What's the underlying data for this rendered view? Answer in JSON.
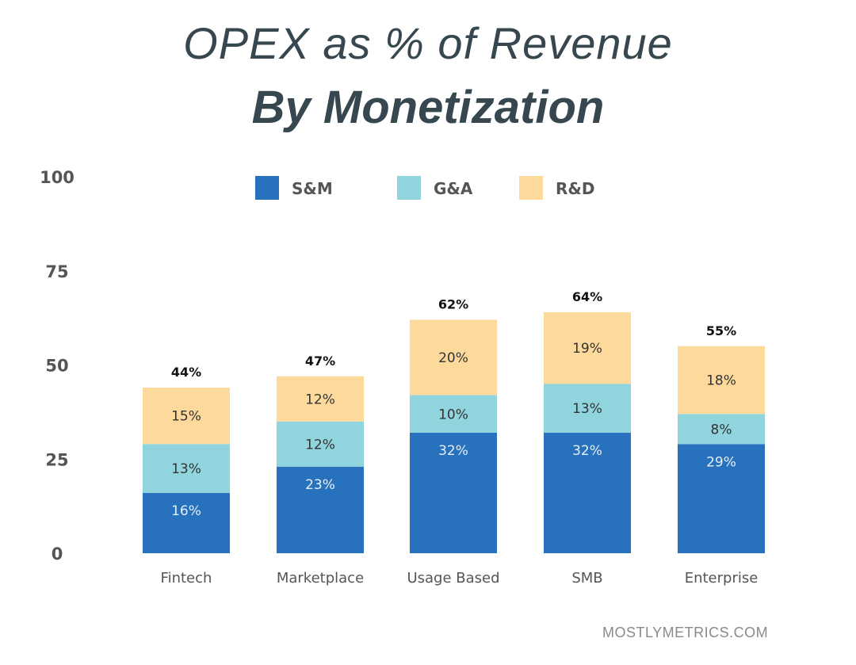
{
  "chart_data": {
    "type": "bar",
    "stacked": true,
    "title": "OPEX as % of Revenue",
    "subtitle": "By Monetization",
    "xlabel": "",
    "ylabel": "",
    "ylim": [
      0,
      100
    ],
    "yticks": [
      0,
      25,
      50,
      75,
      100
    ],
    "grid": false,
    "legend_position": "top",
    "categories": [
      "Fintech",
      "Marketplace",
      "Usage Based",
      "SMB",
      "Enterprise"
    ],
    "series": [
      {
        "name": "S&M",
        "color": "#2872bd",
        "values": [
          16,
          23,
          32,
          32,
          29
        ],
        "labels": [
          "16%",
          "23%",
          "32%",
          "32%",
          "29%"
        ],
        "label_color": "#e6eef8"
      },
      {
        "name": "G&A",
        "color": "#90d5de",
        "values": [
          13,
          12,
          10,
          13,
          8
        ],
        "labels": [
          "13%",
          "12%",
          "10%",
          "13%",
          "8%"
        ],
        "label_color": "#333333"
      },
      {
        "name": "R&D",
        "color": "#fdd99c",
        "values": [
          15,
          12,
          20,
          19,
          18
        ],
        "labels": [
          "15%",
          "12%",
          "20%",
          "19%",
          "18%"
        ],
        "label_color": "#333333"
      }
    ],
    "totals": [
      44,
      47,
      62,
      64,
      55
    ],
    "total_labels": [
      "44%",
      "47%",
      "62%",
      "64%",
      "55%"
    ]
  },
  "watermark": "MOSTLYMETRICS.COM"
}
